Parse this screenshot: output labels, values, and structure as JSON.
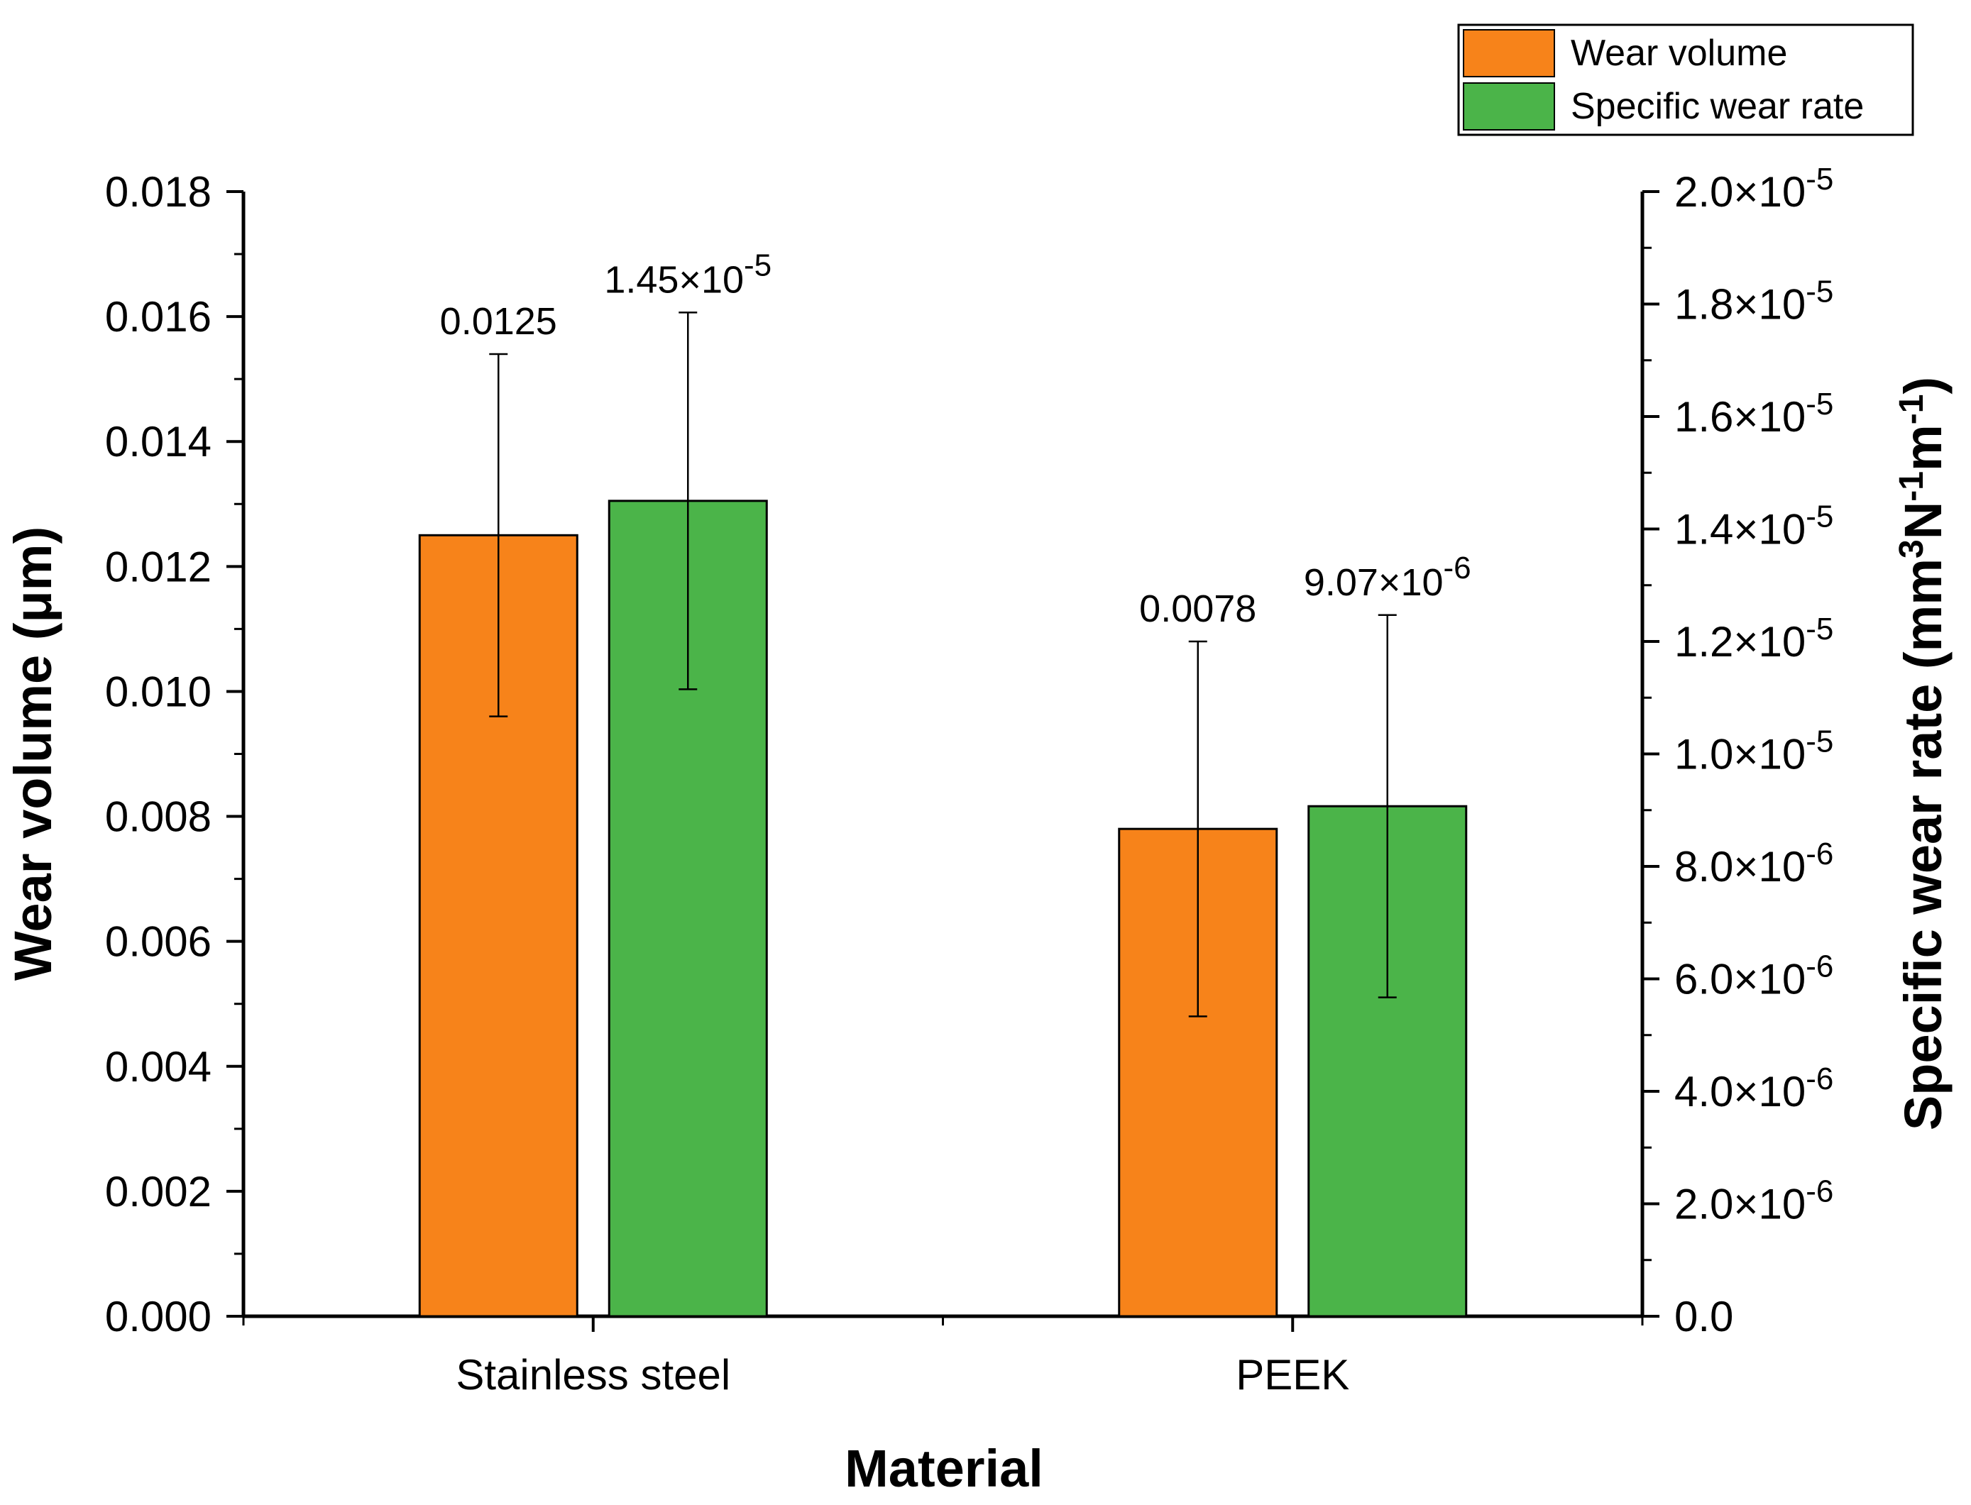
{
  "chart_data": {
    "type": "bar",
    "title": "",
    "xlabel": "Material",
    "ylabel_left": "Wear volume (μm)",
    "ylabel_right": {
      "prefix": "Specific wear rate (mm",
      "sup1": "3",
      "mid1": "N",
      "sup2": "-1",
      "mid2": "m",
      "sup3": "-1",
      "suffix": ")"
    },
    "categories": [
      "Stainless steel",
      "PEEK"
    ],
    "ylim_left": [
      0,
      0.018
    ],
    "ylim_right": [
      0,
      2e-05
    ],
    "left_ticks": [
      {
        "value": 0.0,
        "label": "0.000"
      },
      {
        "value": 0.002,
        "label": "0.002"
      },
      {
        "value": 0.004,
        "label": "0.004"
      },
      {
        "value": 0.006,
        "label": "0.006"
      },
      {
        "value": 0.008,
        "label": "0.008"
      },
      {
        "value": 0.01,
        "label": "0.010"
      },
      {
        "value": 0.012,
        "label": "0.012"
      },
      {
        "value": 0.014,
        "label": "0.014"
      },
      {
        "value": 0.016,
        "label": "0.016"
      },
      {
        "value": 0.018,
        "label": "0.018"
      }
    ],
    "right_ticks": [
      {
        "value": 0,
        "mantissa": "0.0",
        "exp": ""
      },
      {
        "value": 2e-06,
        "mantissa": "2.0×10",
        "exp": "-6"
      },
      {
        "value": 4e-06,
        "mantissa": "4.0×10",
        "exp": "-6"
      },
      {
        "value": 6e-06,
        "mantissa": "6.0×10",
        "exp": "-6"
      },
      {
        "value": 8e-06,
        "mantissa": "8.0×10",
        "exp": "-6"
      },
      {
        "value": 1e-05,
        "mantissa": "1.0×10",
        "exp": "-5"
      },
      {
        "value": 1.2e-05,
        "mantissa": "1.2×10",
        "exp": "-5"
      },
      {
        "value": 1.4e-05,
        "mantissa": "1.4×10",
        "exp": "-5"
      },
      {
        "value": 1.6e-05,
        "mantissa": "1.6×10",
        "exp": "-5"
      },
      {
        "value": 1.8e-05,
        "mantissa": "1.8×10",
        "exp": "-5"
      },
      {
        "value": 2e-05,
        "mantissa": "2.0×10",
        "exp": "-5"
      }
    ],
    "series": [
      {
        "name": "Wear volume",
        "axis": "left",
        "color": "#F7831A",
        "values": [
          0.0125,
          0.0078
        ],
        "errors": [
          0.0029,
          0.003
        ],
        "labels": [
          {
            "mantissa": "0.0125",
            "exp": ""
          },
          {
            "mantissa": "0.0078",
            "exp": ""
          }
        ]
      },
      {
        "name": "Specific wear rate",
        "axis": "right",
        "color": "#4BB449",
        "values": [
          1.45e-05,
          9.07e-06
        ],
        "errors": [
          3.35e-06,
          3.4e-06
        ],
        "labels": [
          {
            "mantissa": "1.45×10",
            "exp": "-5"
          },
          {
            "mantissa": "9.07×10",
            "exp": "-6"
          }
        ]
      }
    ],
    "legend_position": "top-right",
    "grid": false
  }
}
